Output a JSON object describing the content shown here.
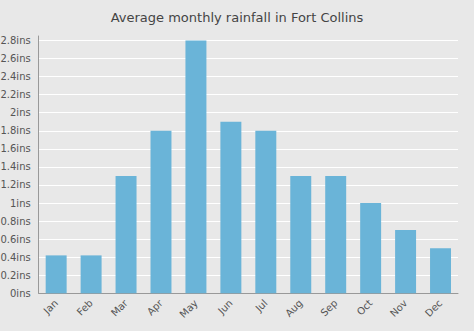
{
  "chart_data": {
    "type": "bar",
    "title": "Average monthly rainfall in Fort Collins",
    "categories": [
      "Jan",
      "Feb",
      "Mar",
      "Apr",
      "May",
      "Jun",
      "Jul",
      "Aug",
      "Sep",
      "Oct",
      "Nov",
      "Dec"
    ],
    "values": [
      0.42,
      0.42,
      1.3,
      1.8,
      2.8,
      1.9,
      1.8,
      1.3,
      1.3,
      1.0,
      0.7,
      0.5
    ],
    "color": "#6ab4d8",
    "ylim": [
      0,
      2.85
    ],
    "yticks": [
      {
        "value": 0,
        "label": "0ins"
      },
      {
        "value": 0.2,
        "label": "0.2ins"
      },
      {
        "value": 0.4,
        "label": "0.4ins"
      },
      {
        "value": 0.6,
        "label": "0.6ins"
      },
      {
        "value": 0.8,
        "label": "0.8ins"
      },
      {
        "value": 1.0,
        "label": "1ins"
      },
      {
        "value": 1.2,
        "label": "1.2ins"
      },
      {
        "value": 1.4,
        "label": "1.4ins"
      },
      {
        "value": 1.6,
        "label": "1.6ins"
      },
      {
        "value": 1.8,
        "label": "1.8ins"
      },
      {
        "value": 2.0,
        "label": "2ins"
      },
      {
        "value": 2.2,
        "label": "2.2ins"
      },
      {
        "value": 2.4,
        "label": "2.4ins"
      },
      {
        "value": 2.6,
        "label": "2.6ins"
      },
      {
        "value": 2.8,
        "label": "2.8ins"
      }
    ],
    "grid": true
  }
}
